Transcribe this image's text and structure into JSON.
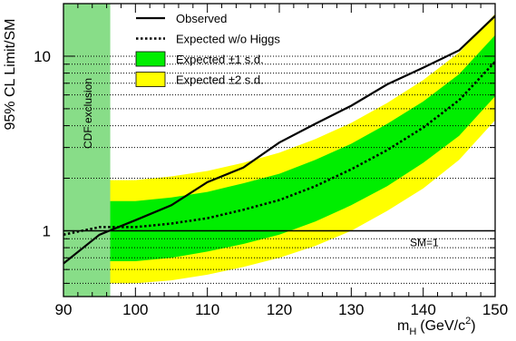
{
  "chart_data": {
    "type": "line",
    "xlabel": "m",
    "xlabel_sub": "H",
    "xlabel_units": "(GeV/c",
    "xlabel_sup": "2",
    "xlabel_close": ")",
    "ylabel": "95% CL Limit/SM",
    "x_scale": "linear",
    "y_scale": "log",
    "xlim": [
      90,
      150
    ],
    "ylim": [
      0.42,
      20
    ],
    "x_ticks": [
      90,
      100,
      110,
      120,
      130,
      140,
      150
    ],
    "y_ticks": [
      1,
      10
    ],
    "grid": "horizontal-dotted",
    "legend_position": "top",
    "legend": [
      {
        "label": "Observed",
        "style": "solid-line"
      },
      {
        "label": "Expected w/o Higgs",
        "style": "dotted-line"
      },
      {
        "label": "Expected ±1 s.d.",
        "style": "green-band"
      },
      {
        "label": "Expected ±2 s.d.",
        "style": "yellow-band"
      }
    ],
    "series": [
      {
        "name": "Observed",
        "style": "solid",
        "x": [
          90,
          95,
          100,
          105,
          110,
          115,
          120,
          125,
          130,
          135,
          140,
          145,
          150
        ],
        "y": [
          0.65,
          0.95,
          1.15,
          1.4,
          1.9,
          2.3,
          3.2,
          4.1,
          5.2,
          6.9,
          8.6,
          10.8,
          17.0
        ]
      },
      {
        "name": "Expected w/o Higgs",
        "style": "dotted",
        "x": [
          90,
          95,
          100,
          105,
          110,
          115,
          120,
          125,
          130,
          135,
          140,
          145,
          150
        ],
        "y": [
          0.95,
          1.05,
          1.05,
          1.1,
          1.18,
          1.32,
          1.5,
          1.8,
          2.25,
          2.9,
          3.9,
          5.6,
          9.3
        ]
      }
    ],
    "bands": [
      {
        "name": "Expected ±2 s.d.",
        "x": [
          90,
          95,
          100,
          105,
          110,
          115,
          120,
          125,
          130,
          135,
          140,
          145,
          150
        ],
        "low": [
          0.5,
          0.5,
          0.5,
          0.52,
          0.56,
          0.62,
          0.7,
          0.82,
          1.0,
          1.3,
          1.75,
          2.55,
          4.3
        ],
        "high": [
          1.85,
          1.95,
          1.95,
          2.05,
          2.2,
          2.45,
          2.8,
          3.35,
          4.15,
          5.4,
          7.3,
          10.5,
          17.5
        ]
      },
      {
        "name": "Expected ±1 s.d.",
        "x": [
          90,
          95,
          100,
          105,
          110,
          115,
          120,
          125,
          130,
          135,
          140,
          145,
          150
        ],
        "low": [
          0.64,
          0.67,
          0.67,
          0.7,
          0.76,
          0.84,
          0.95,
          1.13,
          1.4,
          1.8,
          2.45,
          3.5,
          5.9
        ],
        "high": [
          1.4,
          1.48,
          1.48,
          1.55,
          1.67,
          1.87,
          2.12,
          2.55,
          3.15,
          4.1,
          5.5,
          7.9,
          13.2
        ]
      }
    ],
    "exclusion": {
      "label": "CDF exclusion",
      "x_from": 90,
      "x_to": 96.5,
      "color": "#88dd88"
    },
    "reference_line": {
      "y": 1,
      "label": "SM=1"
    },
    "colors": {
      "green_band": "#00ee00",
      "yellow_band": "#ffff00",
      "exclusion": "#88dd88",
      "line": "#000000"
    }
  }
}
